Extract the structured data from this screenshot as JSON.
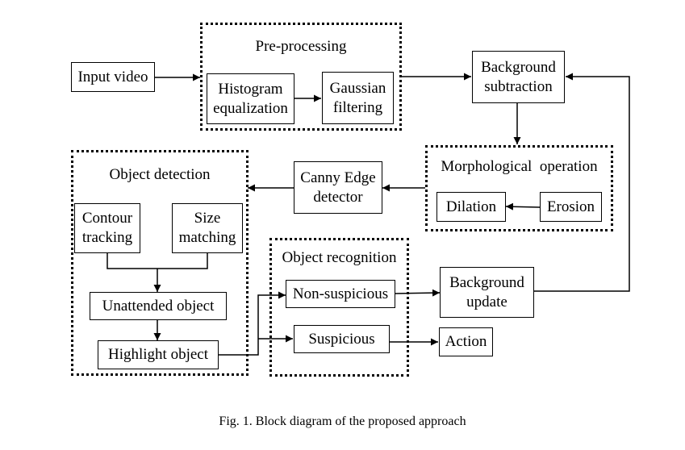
{
  "nodes": {
    "input_video": {
      "label": "Input video"
    },
    "histogram_eq": {
      "line1": "Histogram",
      "line2": "equalization"
    },
    "gaussian": {
      "line1": "Gaussian",
      "line2": "filtering"
    },
    "bg_subtraction": {
      "line1": "Background",
      "line2": "subtraction"
    },
    "dilation": {
      "label": "Dilation"
    },
    "erosion": {
      "label": "Erosion"
    },
    "canny": {
      "line1": "Canny Edge",
      "line2": "detector"
    },
    "contour": {
      "line1": "Contour",
      "line2": "tracking"
    },
    "size_match": {
      "line1": "Size",
      "line2": "matching"
    },
    "unattended": {
      "label": "Unattended object"
    },
    "highlight": {
      "label": "Highlight object"
    },
    "non_suspicious": {
      "label": "Non-suspicious"
    },
    "suspicious": {
      "label": "Suspicious"
    },
    "bg_update": {
      "line1": "Background",
      "line2": "update"
    },
    "action": {
      "label": "Action"
    }
  },
  "groups": {
    "preprocessing": {
      "label": "Pre-processing"
    },
    "morphological": {
      "label": "Morphological  operation"
    },
    "object_detection": {
      "label": "Object detection"
    },
    "object_recognition": {
      "label": "Object recognition"
    }
  },
  "edges": [
    {
      "from": "input_video",
      "to": "preprocessing"
    },
    {
      "from": "histogram_eq",
      "to": "gaussian"
    },
    {
      "from": "preprocessing",
      "to": "bg_subtraction"
    },
    {
      "from": "bg_subtraction",
      "to": "morphological"
    },
    {
      "from": "erosion",
      "to": "dilation"
    },
    {
      "from": "morphological",
      "to": "canny"
    },
    {
      "from": "canny",
      "to": "object_detection"
    },
    {
      "from": "contour",
      "to": "unattended"
    },
    {
      "from": "size_match",
      "to": "unattended"
    },
    {
      "from": "unattended",
      "to": "highlight"
    },
    {
      "from": "highlight",
      "to": "non_suspicious"
    },
    {
      "from": "highlight",
      "to": "suspicious"
    },
    {
      "from": "non_suspicious",
      "to": "bg_update"
    },
    {
      "from": "suspicious",
      "to": "action"
    },
    {
      "from": "bg_update",
      "to": "bg_subtraction"
    }
  ],
  "caption": "Fig. 1. Block diagram of the proposed approach"
}
